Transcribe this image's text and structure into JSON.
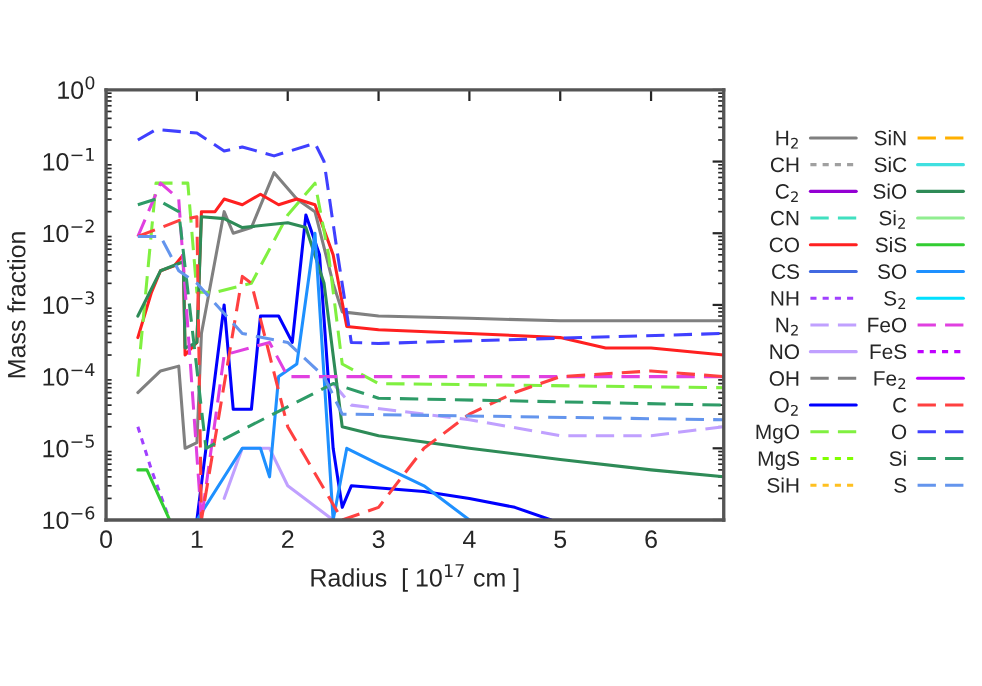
{
  "chart_data": {
    "type": "line",
    "xlabel": "Radius  [ 10$^{17}$ cm ]",
    "ylabel": "Mass fraction",
    "log": "y",
    "xlim": [
      0,
      6.8
    ],
    "xticks": [
      0,
      1,
      2,
      3,
      4,
      5,
      6
    ],
    "ylim": [
      1e-06,
      1
    ],
    "yticks": [
      {
        "value": 1e-06,
        "label": "10$^{−6}$"
      },
      {
        "value": 1e-05,
        "label": "10$^{−5}$"
      },
      {
        "value": 0.0001,
        "label": "10$^{−4}$"
      },
      {
        "value": 0.001,
        "label": "10$^{−3}$"
      },
      {
        "value": 0.01,
        "label": "10$^{−2}$"
      },
      {
        "value": 0.1,
        "label": "10$^{−1}$"
      },
      {
        "value": 1,
        "label": "10$^{0}$"
      }
    ],
    "grid": false,
    "legend": "right",
    "series": [
      {
        "name": "H$_{2}$",
        "color": "#808080",
        "line_style": "solid",
        "x": [
          0.35,
          0.6,
          0.8,
          0.87,
          1.0,
          1.05,
          1.3,
          1.4,
          1.6,
          1.85,
          2.1,
          2.3,
          2.5,
          2.6,
          3,
          4,
          5,
          6,
          6.8
        ],
        "values": [
          6e-05,
          0.00012,
          0.00014,
          1e-05,
          1.2e-05,
          0.0004,
          0.02,
          0.01,
          0.012,
          0.07,
          0.03,
          0.02,
          0.002,
          0.0008,
          0.0007,
          0.00065,
          0.0006,
          0.0006,
          0.0006
        ]
      },
      {
        "name": "CH",
        "color": "#a0a0a0",
        "line_style": "dotted"
      },
      {
        "name": "C$_{2}$",
        "color": "#9400d3",
        "line_style": "solid"
      },
      {
        "name": "CN",
        "color": "#40e0c0",
        "line_style": "dashed"
      },
      {
        "name": "CO",
        "color": "#ff2020",
        "line_style": "solid",
        "x": [
          0.35,
          0.5,
          0.6,
          0.75,
          0.85,
          0.87,
          1.0,
          1.05,
          1.2,
          1.3,
          1.5,
          1.7,
          1.9,
          2.1,
          2.3,
          2.5,
          2.65,
          3,
          4,
          5,
          5.5,
          6,
          6.8
        ],
        "values": [
          0.00035,
          0.0015,
          0.003,
          0.0035,
          0.005,
          0.0002,
          0.0003,
          0.02,
          0.02,
          0.03,
          0.025,
          0.035,
          0.025,
          0.03,
          0.025,
          0.005,
          0.0005,
          0.00045,
          0.0004,
          0.00035,
          0.00025,
          0.00025,
          0.0002
        ]
      },
      {
        "name": "CS",
        "color": "#4169e1",
        "line_style": "solid"
      },
      {
        "name": "NH",
        "color": "#a040ff",
        "line_style": "dotted",
        "x": [
          0.35,
          0.5,
          0.7
        ],
        "values": [
          2e-05,
          5e-06,
          1e-06
        ]
      },
      {
        "name": "N$_{2}$",
        "color": "#c0a0ff",
        "line_style": "dashed",
        "x": [
          2.5,
          2.7,
          4,
          5,
          6,
          6.8
        ],
        "values": [
          8e-05,
          4e-05,
          2.5e-05,
          1.5e-05,
          1.5e-05,
          2e-05
        ]
      },
      {
        "name": "NO",
        "color": "#c0a0ff",
        "line_style": "solid",
        "x": [
          1.3,
          1.5,
          1.8,
          2.0,
          2.5
        ],
        "values": [
          2e-06,
          1e-05,
          1e-05,
          3e-06,
          1e-06
        ]
      },
      {
        "name": "OH",
        "color": "#808080",
        "line_style": "dashed"
      },
      {
        "name": "O$_{2}$",
        "color": "#0000ff",
        "line_style": "solid",
        "x": [
          1.0,
          1.3,
          1.4,
          1.6,
          1.7,
          1.9,
          2.05,
          2.2,
          2.35,
          2.5,
          2.6,
          2.7,
          3.5,
          4,
          4.5,
          4.9
        ],
        "values": [
          1e-06,
          0.001,
          3.5e-05,
          3.5e-05,
          0.0007,
          0.0007,
          0.0003,
          0.018,
          0.005,
          1e-05,
          1.5e-06,
          3e-06,
          2.5e-06,
          2e-06,
          1.5e-06,
          1e-06
        ]
      },
      {
        "name": "MgO",
        "color": "#80f040",
        "line_style": "dashed",
        "x": [
          0.35,
          0.55,
          0.9,
          1.0,
          1.2,
          1.6,
          2.0,
          2.3,
          2.45,
          2.6,
          3,
          6.8
        ],
        "values": [
          0.0001,
          0.05,
          0.05,
          0.0015,
          0.0015,
          0.002,
          0.018,
          0.05,
          0.005,
          0.00015,
          8e-05,
          7e-05
        ]
      },
      {
        "name": "MgS",
        "color": "#80ff00",
        "line_style": "dotted"
      },
      {
        "name": "SiH",
        "color": "#ffc020",
        "line_style": "dotted"
      },
      {
        "name": "SiN",
        "color": "#ffb000",
        "line_style": "dashed"
      },
      {
        "name": "SiC",
        "color": "#40e0e0",
        "line_style": "solid"
      },
      {
        "name": "SiO",
        "color": "#2e8b57",
        "line_style": "solid",
        "x": [
          0.35,
          0.6,
          0.85,
          0.87,
          1.0,
          1.05,
          1.3,
          1.5,
          2.0,
          2.2,
          2.4,
          2.6,
          3,
          4,
          5,
          6,
          6.8
        ],
        "values": [
          0.0007,
          0.003,
          0.004,
          0.00025,
          0.0003,
          0.017,
          0.016,
          0.012,
          0.014,
          0.012,
          0.002,
          2e-05,
          1.5e-05,
          1e-05,
          7e-06,
          5e-06,
          4e-06
        ]
      },
      {
        "name": "Si$_{2}$",
        "color": "#90ee90",
        "line_style": "solid"
      },
      {
        "name": "SiS",
        "color": "#32cd32",
        "line_style": "solid",
        "x": [
          0.35,
          0.45,
          0.7
        ],
        "values": [
          5e-06,
          5e-06,
          1e-06
        ]
      },
      {
        "name": "SO",
        "color": "#1e90ff",
        "line_style": "solid",
        "x": [
          1.0,
          1.5,
          1.7,
          1.8,
          1.9,
          2.1,
          2.3,
          2.5,
          2.65,
          3,
          3.5,
          4
        ],
        "values": [
          1e-06,
          1e-05,
          1e-05,
          4e-06,
          0.0001,
          0.00015,
          0.01,
          1e-06,
          1e-05,
          6e-06,
          3e-06,
          1e-06
        ]
      },
      {
        "name": "S$_{2}$",
        "color": "#00e0ff",
        "line_style": "solid"
      },
      {
        "name": "FeO",
        "color": "#e040e0",
        "line_style": "dashed",
        "x": [
          0.35,
          0.6,
          0.8,
          1.05,
          1.3,
          1.8,
          2.0,
          2.5,
          6.8
        ],
        "values": [
          0.009,
          0.05,
          0.03,
          1e-06,
          0.0002,
          0.0003,
          0.0001,
          0.0001,
          0.0001
        ]
      },
      {
        "name": "FeS",
        "color": "#c000ff",
        "line_style": "dotted"
      },
      {
        "name": "Fe$_{2}$",
        "color": "#c000ff",
        "line_style": "solid"
      },
      {
        "name": "C",
        "color": "#ff4040",
        "line_style": "dashed",
        "x": [
          0.35,
          0.8,
          1.0,
          1.05,
          1.5,
          1.6,
          2.0,
          2.6,
          3,
          3.5,
          4,
          4.5,
          5,
          6,
          6.8
        ],
        "values": [
          0.009,
          0.015,
          0.017,
          1e-06,
          0.0025,
          0.002,
          2e-05,
          1e-06,
          1.5e-06,
          1e-05,
          3e-05,
          6e-05,
          0.0001,
          0.00012,
          0.0001
        ]
      },
      {
        "name": "O",
        "color": "#4040ff",
        "line_style": "dashed",
        "x": [
          0.35,
          0.55,
          1.0,
          1.3,
          1.5,
          1.85,
          2.3,
          2.4,
          2.55,
          2.7,
          3,
          6.8
        ],
        "values": [
          0.2,
          0.28,
          0.25,
          0.14,
          0.16,
          0.12,
          0.18,
          0.1,
          0.005,
          0.0003,
          0.00029,
          0.0004
        ]
      },
      {
        "name": "Si",
        "color": "#2e9b67",
        "line_style": "dashed",
        "x": [
          0.35,
          0.55,
          0.8,
          1.1,
          2.5,
          3,
          6.8
        ],
        "values": [
          0.025,
          0.03,
          0.02,
          1e-05,
          8e-05,
          5e-05,
          4e-05
        ]
      },
      {
        "name": "S",
        "color": "#6495ed",
        "line_style": "dashed",
        "x": [
          0.35,
          0.6,
          0.8,
          1.0,
          1.5,
          2.0,
          2.4,
          2.6,
          6.8
        ],
        "values": [
          0.009,
          0.009,
          0.003,
          0.002,
          0.0004,
          0.0003,
          0.0001,
          3e-05,
          2.5e-05
        ]
      }
    ]
  }
}
